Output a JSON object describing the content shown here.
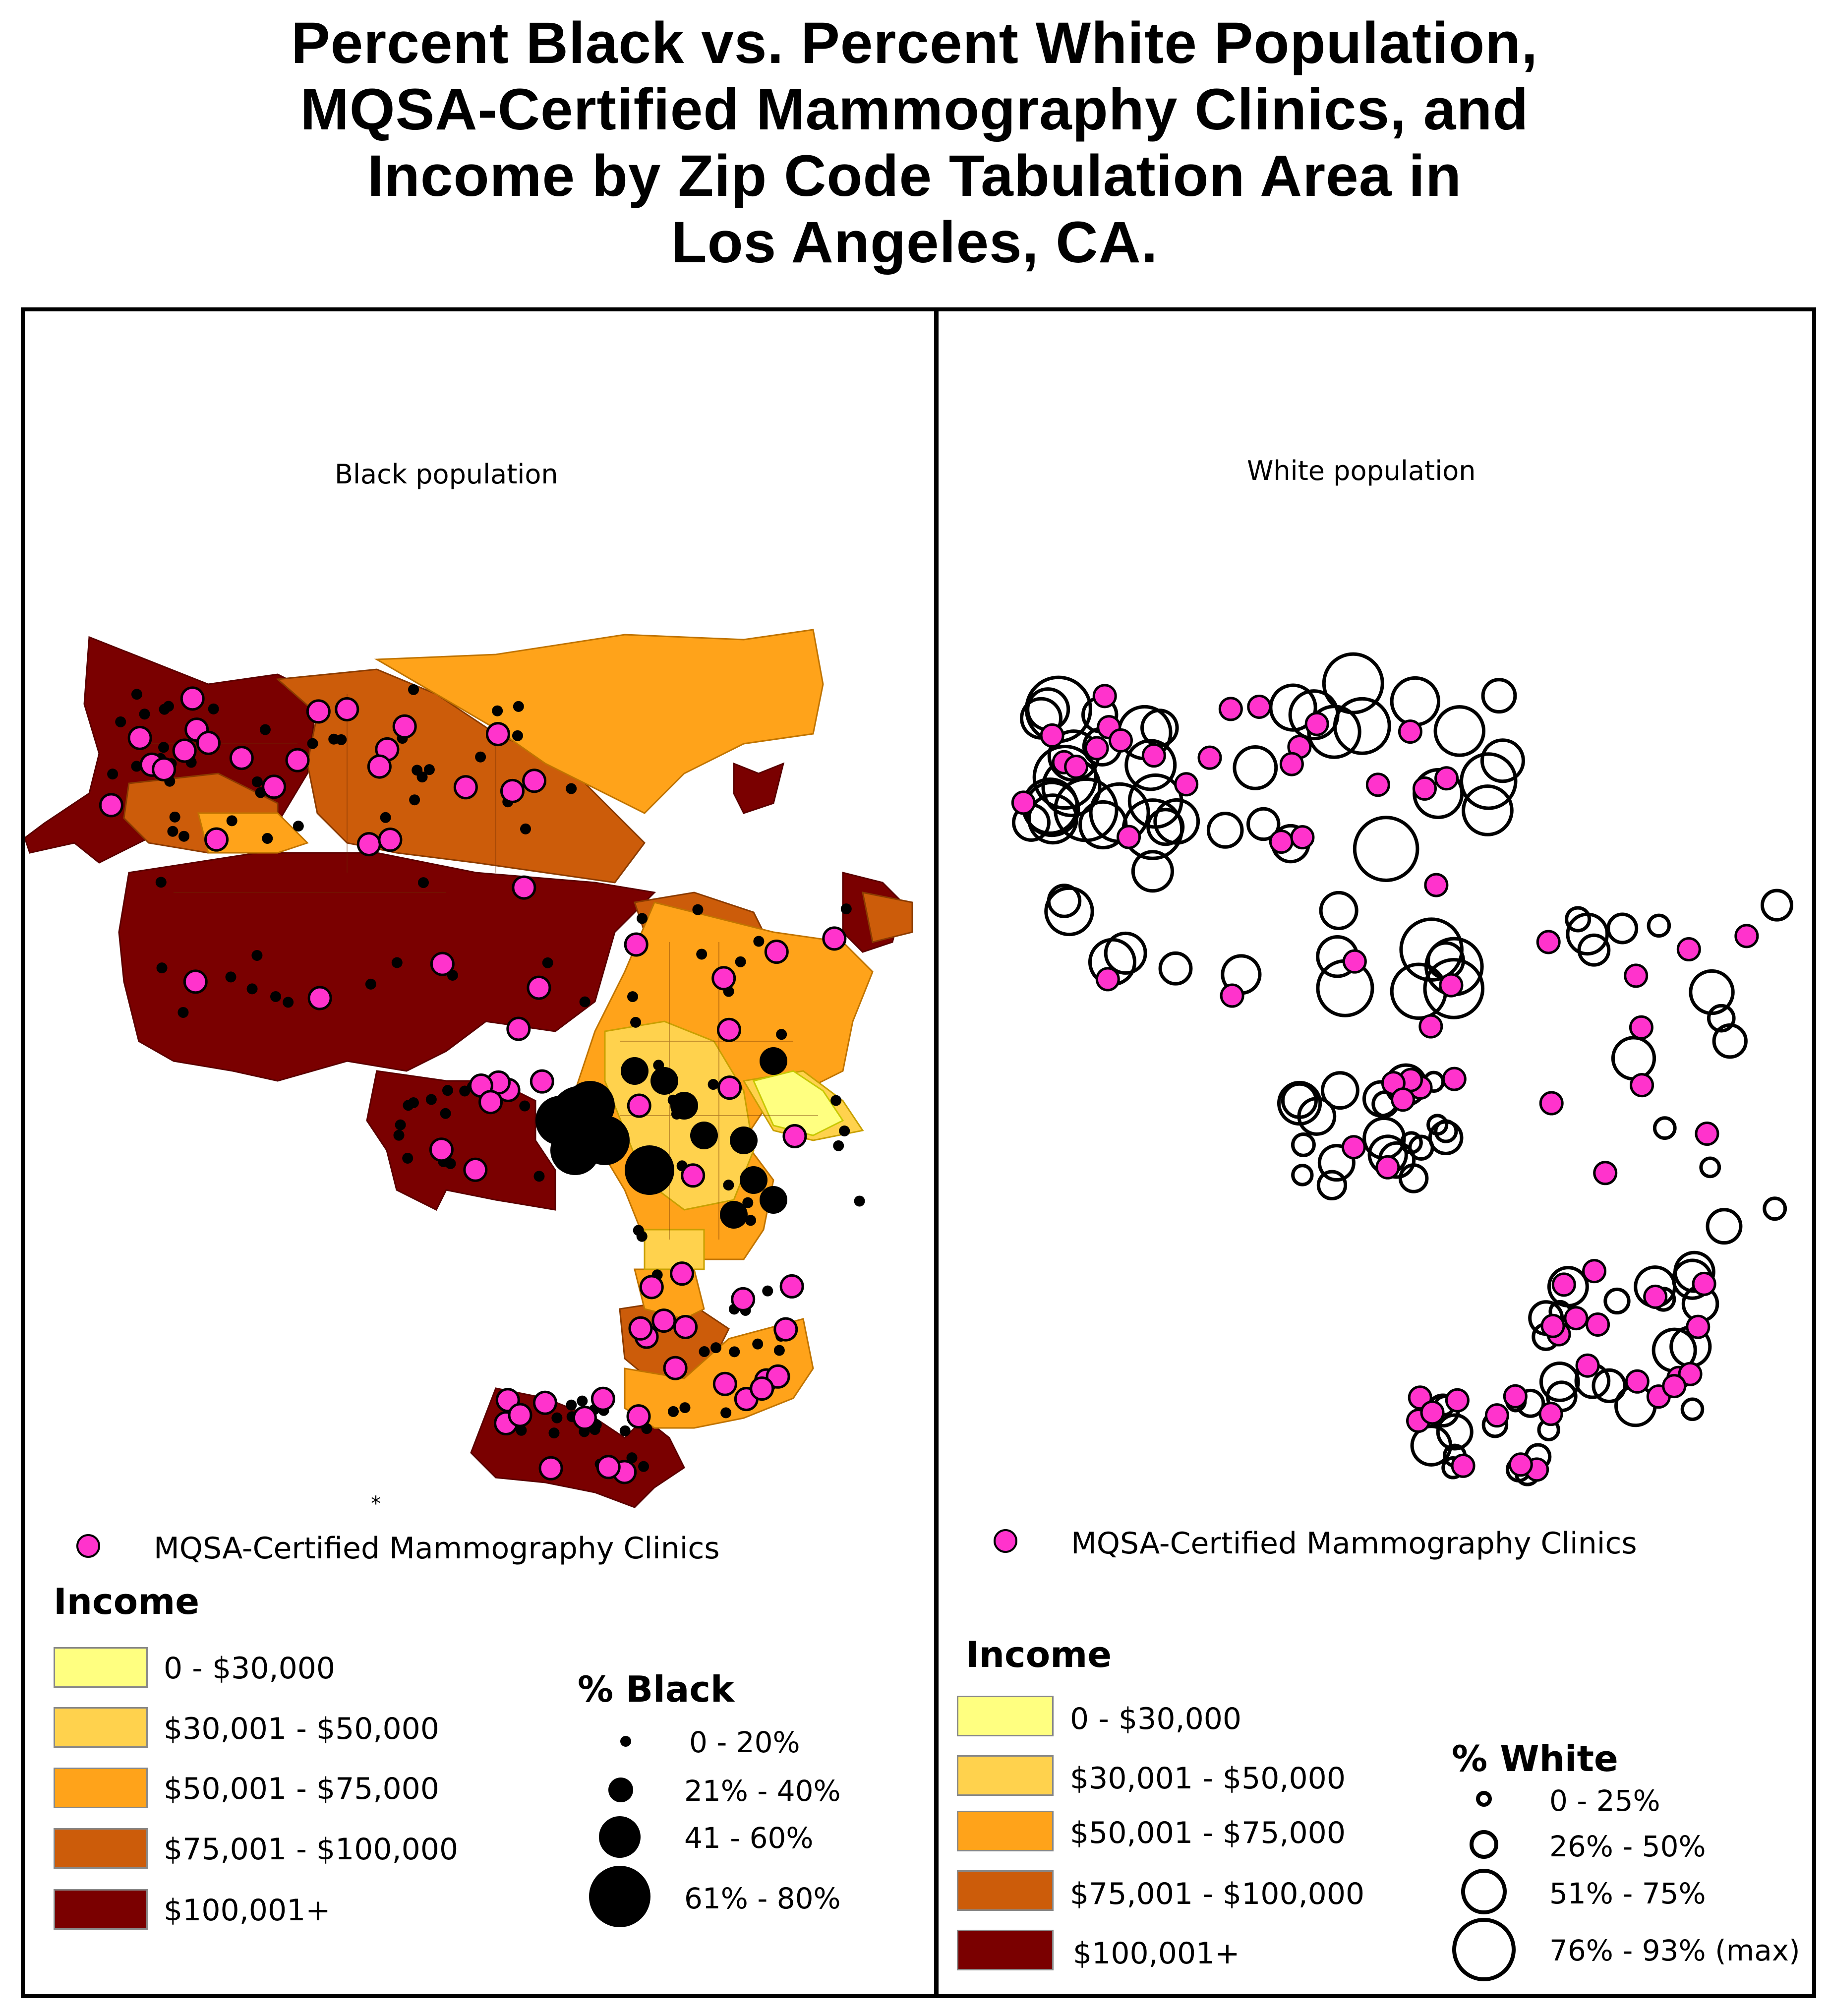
{
  "title_lines": [
    "Percent Black vs. Percent White Population,",
    "MQSA-Certified Mammography Clinics, and",
    "Income by Zip Code Tabulation Area in",
    "Los Angeles, CA."
  ],
  "colors": {
    "income_0": "#ffff80",
    "income_1": "#ffd24d",
    "income_2": "#ffa31a",
    "income_3": "#cc5c0a",
    "income_4": "#7a0000",
    "clinic": "#ff33cc",
    "marker": "#000000"
  },
  "left_panel": {
    "map_title": "Black population",
    "clinic_legend": "MQSA-Certified Mammography Clinics",
    "income_heading": "Income",
    "income_classes": [
      "0 - $30,000",
      "$30,001 - $50,000",
      "$50,001 - $75,000",
      "$75,001 - $100,000",
      "$100,001+"
    ],
    "pct_heading": "% Black",
    "pct_classes": [
      "0 - 20%",
      "21% - 40%",
      "41 - 60%",
      "61% - 80%"
    ]
  },
  "right_panel": {
    "map_title": "White population",
    "clinic_legend": "MQSA-Certified Mammography Clinics",
    "income_heading": "Income",
    "income_classes": [
      "0 - $30,000",
      "$30,001 - $50,000",
      "$50,001 - $75,000",
      "$75,001 - $100,000",
      "$100,001+"
    ],
    "pct_heading": "% White",
    "pct_classes": [
      "0 - 25%",
      "26% - 50%",
      "51% - 75%",
      "76% - 93% (max)"
    ]
  },
  "star": "*"
}
